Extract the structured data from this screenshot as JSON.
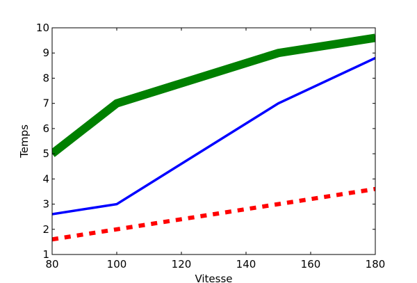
{
  "chart_data": {
    "type": "line",
    "title": "",
    "xlabel": "Vitesse",
    "ylabel": "Temps",
    "xlim": [
      80,
      180
    ],
    "ylim": [
      1,
      10
    ],
    "xticks": [
      80,
      100,
      120,
      140,
      160,
      180
    ],
    "yticks": [
      1,
      2,
      3,
      4,
      5,
      6,
      7,
      8,
      9,
      10
    ],
    "grid": false,
    "series": [
      {
        "x": [
          80,
          100,
          150,
          180
        ],
        "y": [
          5.0,
          7.0,
          9.0,
          9.6
        ],
        "color": "#008000",
        "style": "solid",
        "weight": "thick"
      },
      {
        "x": [
          80,
          100,
          150,
          180
        ],
        "y": [
          2.6,
          3.0,
          7.0,
          8.8
        ],
        "color": "#0000ff",
        "style": "solid",
        "weight": "medium"
      },
      {
        "x": [
          80,
          180
        ],
        "y": [
          1.6,
          3.6
        ],
        "color": "#ff0000",
        "style": "dashed",
        "weight": "medium"
      }
    ]
  }
}
